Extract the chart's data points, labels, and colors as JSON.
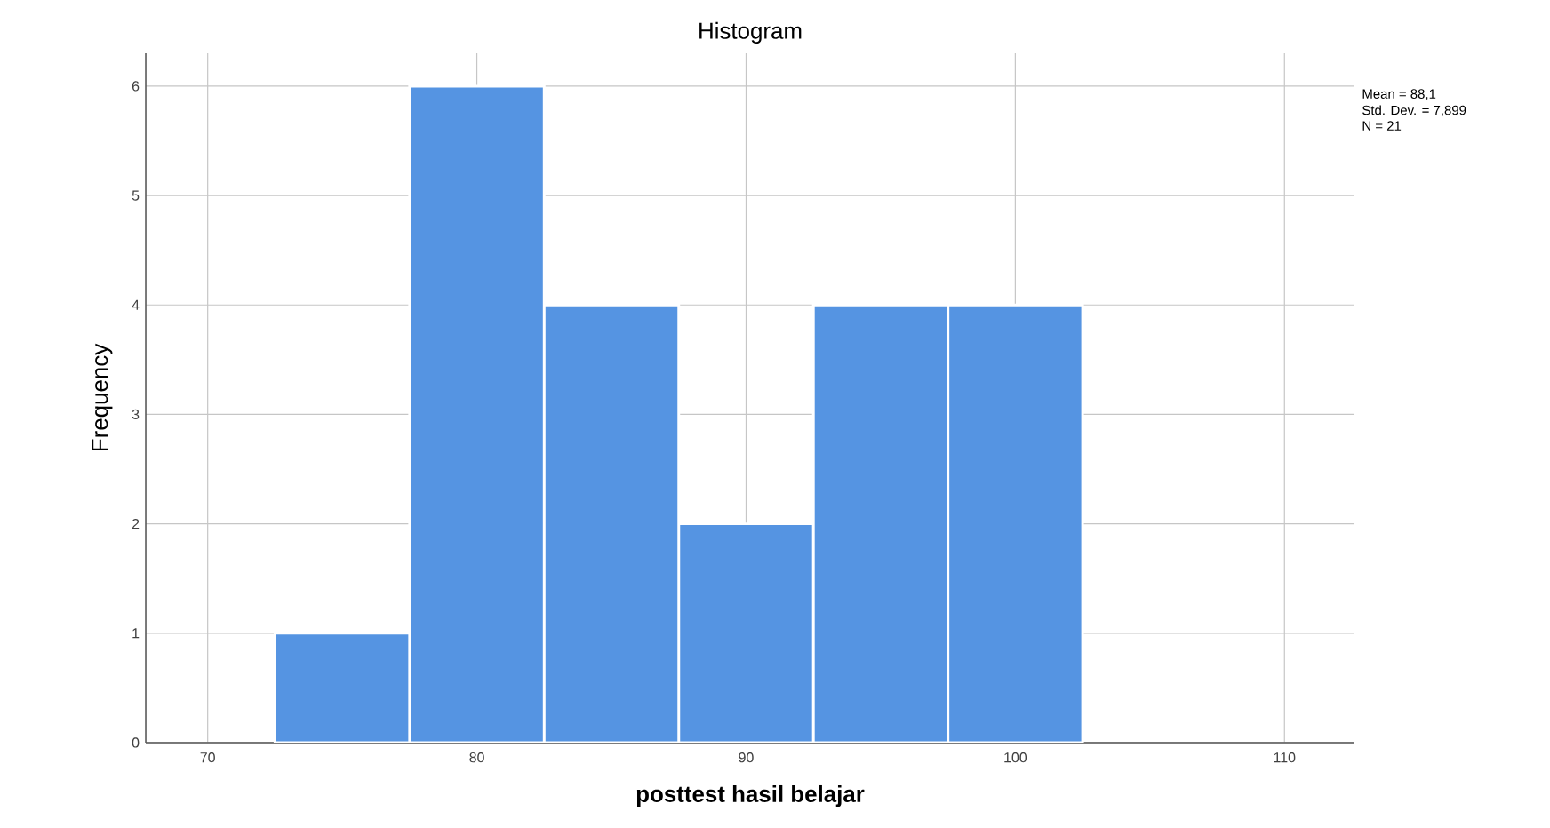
{
  "chart_data": {
    "type": "histogram",
    "title": "Histogram",
    "xlabel": "posttest hasil belajar",
    "ylabel": "Frequency",
    "bins": [
      72.5,
      77.5,
      82.5,
      87.5,
      92.5,
      97.5,
      102.5
    ],
    "values": [
      1,
      6,
      4,
      2,
      4,
      4
    ],
    "color": "#5594e2",
    "xlim": [
      67.7,
      112.6
    ],
    "xticks": [
      70,
      80,
      90,
      100,
      110
    ],
    "ylim": [
      0,
      6.3
    ],
    "yticks": [
      0,
      1,
      2,
      3,
      4,
      5,
      6
    ],
    "grid": true,
    "annotations": [
      "Mean = 88,1",
      "Std. Dev. = 7,899",
      "N = 21"
    ]
  }
}
